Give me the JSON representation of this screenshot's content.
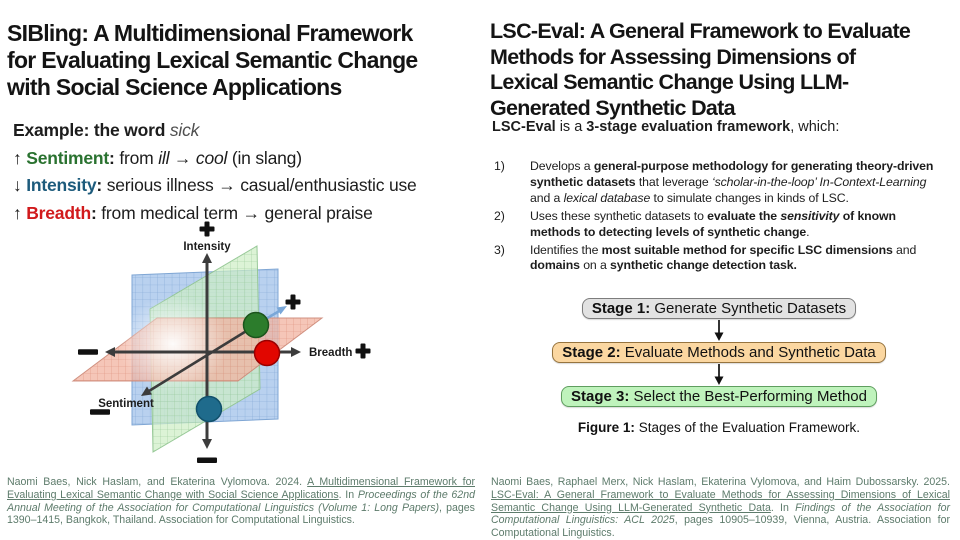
{
  "colors": {
    "sentiment_green": "#2a7230",
    "intensity_blue": "#1d5b7c",
    "breadth_red": "#d11a1c",
    "citation": "#5d7b6b"
  },
  "left": {
    "title_lines": [
      "SIBling: A Multidimensional Framework",
      "for Evaluating Lexical Semantic Change",
      "with Social Science Applications"
    ],
    "example": {
      "heading_segments": [
        {
          "t": "Example: the word ",
          "b": 1
        },
        {
          "t": "sick",
          "i": 1,
          "c": "#4f4f4f"
        }
      ],
      "lines": [
        {
          "segments": [
            {
              "t": "↑ "
            },
            {
              "t": "Sentiment",
              "b": 1,
              "c": "#2a7230"
            },
            {
              "t": ":",
              "b": 1
            },
            {
              "t": " from "
            },
            {
              "t": "ill",
              "i": 1
            },
            {
              "t": " → "
            },
            {
              "t": "cool",
              "i": 1
            },
            {
              "t": " (in slang)"
            }
          ]
        },
        {
          "segments": [
            {
              "t": "↓ "
            },
            {
              "t": "Intensity",
              "b": 1,
              "c": "#1d5b7c"
            },
            {
              "t": ":",
              "b": 1
            },
            {
              "t": " serious illness → casual/enthusiastic use"
            }
          ]
        },
        {
          "segments": [
            {
              "t": "↑ "
            },
            {
              "t": "Breadth",
              "b": 1,
              "c": "#d11a1c"
            },
            {
              "t": ":",
              "b": 1
            },
            {
              "t": " from medical term → general praise"
            }
          ]
        }
      ]
    },
    "diagram": {
      "axis_labels": {
        "vertical": "Intensity",
        "horizontal": "Breadth",
        "diagonal": "Sentiment"
      },
      "points": [
        {
          "name": "green-point",
          "color": "#2c7c2c"
        },
        {
          "name": "red-point",
          "color": "#e10600"
        },
        {
          "name": "teal-point",
          "color": "#1f6b8c"
        }
      ]
    },
    "citation_segments": [
      {
        "t": "Naomi Baes, Nick Haslam, and Ekaterina Vylomova. 2024. "
      },
      {
        "t": "A Multidimensional Framework for Evaluating Lexical Semantic Change with Social Science Applications",
        "u": 1
      },
      {
        "t": ". In "
      },
      {
        "t": "Proceedings of the 62nd Annual Meeting of the Association for Computational Linguistics (Volume 1: Long Papers)",
        "i": 1
      },
      {
        "t": ", pages 1390–1415, Bangkok, Thailand. Association for Computational Linguistics."
      }
    ]
  },
  "right": {
    "title_lines": [
      "LSC-Eval: A General Framework to Evaluate",
      "Methods for Assessing Dimensions of",
      "Lexical Semantic Change Using LLM-",
      "Generated Synthetic Data"
    ],
    "subtitle_segments": [
      {
        "t": "LSC-Eval",
        "b": 1
      },
      {
        "t": " is a "
      },
      {
        "t": "3-stage evaluation framework",
        "b": 1
      },
      {
        "t": ", which:"
      }
    ],
    "list": [
      {
        "num": "1)",
        "segments": [
          {
            "t": "Develops a "
          },
          {
            "t": "general-purpose methodology for generating theory-driven synthetic datasets",
            "b": 1
          },
          {
            "t": " that leverage "
          },
          {
            "t": "‘scholar-in-the-loop’ In-Context-Learning",
            "i": 1
          },
          {
            "t": " and a "
          },
          {
            "t": "lexical database",
            "i": 1
          },
          {
            "t": " to simulate changes in kinds of LSC."
          }
        ]
      },
      {
        "num": "2)",
        "segments": [
          {
            "t": "Uses these synthetic datasets to "
          },
          {
            "t": "evaluate the ",
            "b": 1
          },
          {
            "t": "sensitivity",
            "b": 1,
            "i": 1
          },
          {
            "t": " of known methods to detecting levels of synthetic change",
            "b": 1
          },
          {
            "t": "."
          }
        ]
      },
      {
        "num": "3)",
        "segments": [
          {
            "t": "Identifies the "
          },
          {
            "t": "most suitable method for specific LSC dimensions",
            "b": 1
          },
          {
            "t": " and "
          },
          {
            "t": "domains",
            "b": 1
          },
          {
            "t": " on a "
          },
          {
            "t": "synthetic change detection task.",
            "b": 1
          }
        ]
      }
    ],
    "figure": {
      "stages": [
        {
          "prefix": "Stage 1:",
          "label": " Generate Synthetic Datasets",
          "bg": "#e2e2e2",
          "border": "#7d7d7d"
        },
        {
          "prefix": "Stage 2:",
          "label": " Evaluate Methods and Synthetic Data",
          "bg": "#fbd7a1",
          "border": "#96743f"
        },
        {
          "prefix": "Stage 3:",
          "label": " Select the Best-Performing Method",
          "bg": "#bff3bc",
          "border": "#5f9e5f"
        }
      ],
      "caption_segments": [
        {
          "t": "Figure 1:",
          "b": 1
        },
        {
          "t": " Stages of the Evaluation Framework."
        }
      ]
    },
    "citation_segments": [
      {
        "t": "Naomi Baes, Raphael Merx, Nick Haslam, Ekaterina Vylomova, and Haim Dubossarsky. 2025. "
      },
      {
        "t": "LSC-Eval: A General Framework to Evaluate Methods for Assessing Dimensions of Lexical Semantic Change Using LLM-Generated Synthetic Data",
        "u": 1
      },
      {
        "t": ". In "
      },
      {
        "t": "Findings of the Association for Computational Linguistics: ACL 2025",
        "i": 1
      },
      {
        "t": ", pages 10905–10939, Vienna, Austria. Association for Computational Linguistics."
      }
    ]
  }
}
